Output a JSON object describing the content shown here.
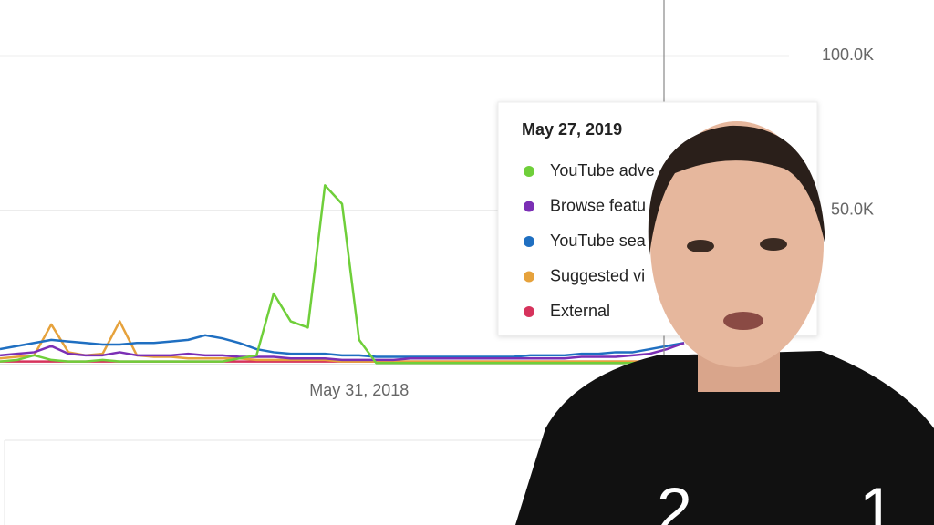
{
  "chart_data": {
    "type": "line",
    "categories": [
      null,
      null,
      null,
      null,
      null,
      null,
      null,
      null,
      null,
      null,
      null,
      null,
      null,
      null,
      null,
      null,
      null,
      null,
      null,
      null,
      null,
      "May 31, 2018",
      null,
      null,
      null,
      null,
      null,
      null,
      null,
      null,
      null,
      null,
      null,
      null,
      null,
      null,
      null,
      null,
      null,
      null,
      null
    ],
    "ylim": [
      0,
      118000
    ],
    "yticks": [
      {
        "value": 50000,
        "label": "50.0K"
      },
      {
        "value": 100000,
        "label": "100.0K"
      }
    ],
    "grid": true,
    "tooltip_title": "May 27, 2019",
    "series": [
      {
        "name": "YouTube adve",
        "color": "#6fcf3a",
        "values": [
          1000,
          1500,
          3000,
          1500,
          1000,
          1000,
          1500,
          1000,
          1000,
          1000,
          1000,
          1000,
          1000,
          1000,
          2000,
          3000,
          23000,
          14000,
          12000,
          58000,
          52000,
          8000,
          500,
          500,
          500,
          500,
          500,
          500,
          500,
          500,
          500,
          500,
          500,
          500,
          500,
          500,
          500,
          500,
          500,
          800,
          1000
        ]
      },
      {
        "name": "Browse featu",
        "color": "#7b2fb5",
        "values": [
          3000,
          3500,
          4000,
          6000,
          3500,
          3000,
          3000,
          4000,
          3000,
          3000,
          3000,
          3500,
          3000,
          3000,
          2500,
          2500,
          2500,
          2000,
          2000,
          2000,
          1500,
          1500,
          1500,
          1500,
          2000,
          2000,
          2000,
          2000,
          2000,
          2000,
          2000,
          2000,
          2000,
          2000,
          2500,
          2500,
          2500,
          3000,
          3500,
          5000,
          7000
        ]
      },
      {
        "name": "YouTube sea",
        "color": "#1f6fc1",
        "values": [
          5000,
          6000,
          7000,
          8000,
          7500,
          7000,
          6500,
          6500,
          7000,
          7000,
          7500,
          8000,
          9500,
          8500,
          7000,
          5000,
          4000,
          3500,
          3500,
          3500,
          3000,
          3000,
          2500,
          2500,
          2500,
          2500,
          2500,
          2500,
          2500,
          2500,
          2500,
          3000,
          3000,
          3000,
          3500,
          3500,
          4000,
          4000,
          5000,
          6000,
          7000
        ]
      },
      {
        "name": "Suggested vi",
        "color": "#e6a23c",
        "values": [
          2000,
          2500,
          3000,
          13000,
          4000,
          3000,
          3500,
          14000,
          3000,
          2500,
          2500,
          2000,
          2000,
          2000,
          2000,
          1500,
          1500,
          1500,
          1500,
          1500,
          1000,
          1000,
          1000,
          1000,
          1000,
          1000,
          1000,
          1000,
          1000,
          1000,
          1000,
          1000,
          1000,
          1000,
          1000,
          1000,
          1000,
          1000,
          1000,
          1000,
          1000
        ]
      },
      {
        "name": "External",
        "color": "#d6335c",
        "values": [
          1000,
          1000,
          1000,
          1000,
          1000,
          1000,
          1000,
          1000,
          1000,
          1000,
          1000,
          1000,
          1000,
          1000,
          1000,
          1000,
          1000,
          1000,
          1000,
          1000,
          1000,
          1000,
          1000,
          1000,
          1000,
          1000,
          1000,
          1000,
          1000,
          1000,
          1000,
          1000,
          1000,
          1000,
          1000,
          1000,
          1000,
          1000,
          1000,
          1000,
          1000
        ]
      }
    ]
  }
}
